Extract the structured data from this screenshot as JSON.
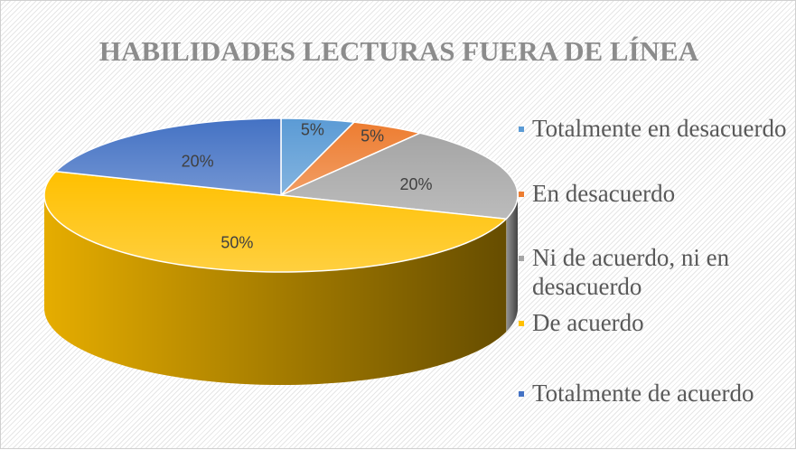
{
  "chart_data": {
    "type": "pie",
    "title": "HABILIDADES LECTURAS FUERA DE LÍNEA",
    "categories": [
      "Totalmente en desacuerdo",
      "En desacuerdo",
      "Ni de acuerdo, ni en desacuerdo",
      "De acuerdo",
      "Totalmente de acuerdo"
    ],
    "values": [
      5,
      5,
      20,
      50,
      20
    ],
    "value_labels": [
      "5%",
      "5%",
      "20%",
      "50%",
      "20%"
    ],
    "colors": [
      "#5b9bd5",
      "#ed7d31",
      "#a5a5a5",
      "#ffc000",
      "#4472c4"
    ],
    "legend": "right"
  }
}
